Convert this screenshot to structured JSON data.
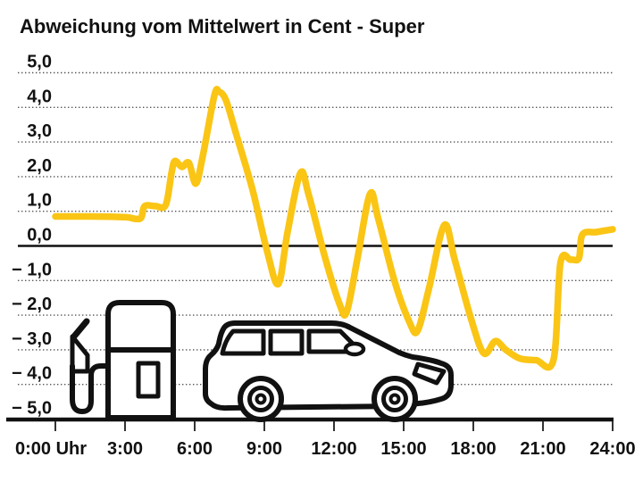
{
  "chart_data": {
    "type": "line",
    "title": "Abweichung vom Mittelwert in Cent - Super",
    "xlim": [
      0,
      24
    ],
    "ylim": [
      -5,
      5
    ],
    "grid": "dotted-horizontal",
    "zero_line": true,
    "legend": "none",
    "x_ticks": [
      {
        "hour": 0,
        "label": "0:00 Uhr"
      },
      {
        "hour": 3,
        "label": "3:00"
      },
      {
        "hour": 6,
        "label": "6:00"
      },
      {
        "hour": 9,
        "label": "9:00"
      },
      {
        "hour": 12,
        "label": "12:00"
      },
      {
        "hour": 15,
        "label": "15:00"
      },
      {
        "hour": 18,
        "label": "18:00"
      },
      {
        "hour": 21,
        "label": "21:00"
      },
      {
        "hour": 24,
        "label": "24:00"
      }
    ],
    "y_ticks": [
      {
        "value": 5,
        "label": "5,0"
      },
      {
        "value": 4,
        "label": "4,0"
      },
      {
        "value": 3,
        "label": "3,0"
      },
      {
        "value": 2,
        "label": "2,0"
      },
      {
        "value": 1,
        "label": "1,0"
      },
      {
        "value": 0,
        "label": "0,0"
      },
      {
        "value": -1,
        "label": "− 1,0"
      },
      {
        "value": -2,
        "label": "− 2,0"
      },
      {
        "value": -3,
        "label": "− 3,0"
      },
      {
        "value": -4,
        "label": "− 4,0"
      },
      {
        "value": -5,
        "label": "− 5,0"
      }
    ],
    "series": [
      {
        "name": "Super",
        "color": "#FAC514",
        "points": [
          [
            0.0,
            0.85
          ],
          [
            1.6,
            0.85
          ],
          [
            3.0,
            0.83
          ],
          [
            3.45,
            0.78
          ],
          [
            3.7,
            0.82
          ],
          [
            3.85,
            1.15
          ],
          [
            4.3,
            1.15
          ],
          [
            4.75,
            1.18
          ],
          [
            5.0,
            2.1
          ],
          [
            5.15,
            2.45
          ],
          [
            5.45,
            2.28
          ],
          [
            5.75,
            2.4
          ],
          [
            6.05,
            1.8
          ],
          [
            6.35,
            2.6
          ],
          [
            6.85,
            4.35
          ],
          [
            7.05,
            4.45
          ],
          [
            7.35,
            4.2
          ],
          [
            7.8,
            3.2
          ],
          [
            8.5,
            1.6
          ],
          [
            9.1,
            -0.1
          ],
          [
            9.6,
            -1.1
          ],
          [
            10.0,
            0.4
          ],
          [
            10.55,
            2.1
          ],
          [
            10.9,
            1.5
          ],
          [
            11.6,
            -0.3
          ],
          [
            12.25,
            -1.7
          ],
          [
            12.55,
            -1.9
          ],
          [
            13.0,
            -0.4
          ],
          [
            13.55,
            1.5
          ],
          [
            13.9,
            0.8
          ],
          [
            14.6,
            -1.0
          ],
          [
            15.25,
            -2.2
          ],
          [
            15.6,
            -2.45
          ],
          [
            16.1,
            -1.2
          ],
          [
            16.75,
            0.6
          ],
          [
            17.2,
            -0.4
          ],
          [
            17.9,
            -2.1
          ],
          [
            18.45,
            -3.1
          ],
          [
            18.95,
            -2.75
          ],
          [
            19.4,
            -3.0
          ],
          [
            20.0,
            -3.25
          ],
          [
            20.7,
            -3.3
          ],
          [
            21.45,
            -3.3
          ],
          [
            21.75,
            -0.5
          ],
          [
            22.2,
            -0.4
          ],
          [
            22.55,
            -0.35
          ],
          [
            22.7,
            0.33
          ],
          [
            23.3,
            0.4
          ],
          [
            24.0,
            0.48
          ]
        ]
      }
    ]
  },
  "colors": {
    "line": "#FAC514",
    "axis": "#111111",
    "grid": "#555555",
    "text": "#111111",
    "background": "#FFFFFF"
  },
  "illustrations": [
    {
      "name": "fuel-pump-icon"
    },
    {
      "name": "car-icon"
    }
  ]
}
